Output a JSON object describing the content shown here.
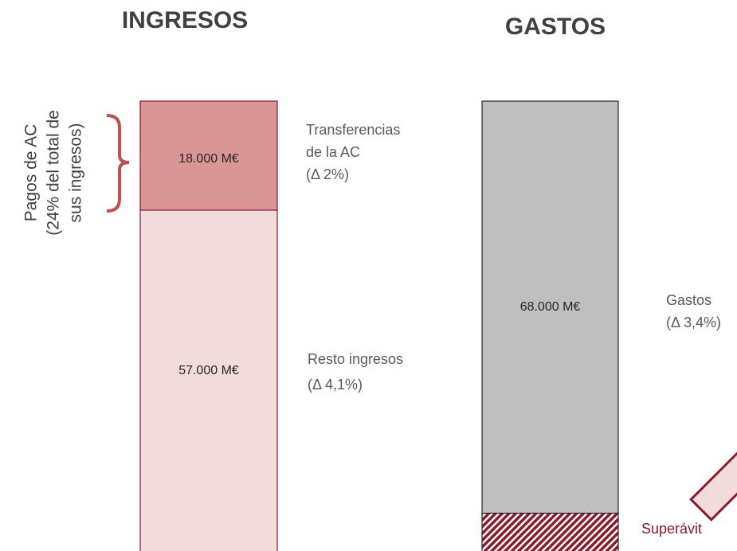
{
  "bars": [
    {
      "title": "INGRESOS",
      "segments": [
        {
          "value": 18000,
          "value_label": "18.000 M€",
          "color": "#d99694",
          "label": [
            "Transferencias",
            "de la AC",
            " (Δ 2%)"
          ]
        },
        {
          "value": 57000,
          "value_label": "57.000 M€",
          "color": "#f2dcdb",
          "label": [
            "Resto ingresos",
            "(Δ 4,1%)"
          ]
        }
      ]
    },
    {
      "title": "GASTOS",
      "segments": [
        {
          "value": 68000,
          "value_label": "68.000 M€",
          "color": "#bfbfbf",
          "label": [
            "Gastos",
            "(Δ 3,4%)"
          ]
        },
        {
          "value": 7000,
          "color": "hatch",
          "label": [
            "Superávit"
          ]
        }
      ]
    }
  ],
  "bracket_note": [
    "Pagos de AC",
    "(24% del total de",
    "sus ingresos)"
  ]
}
